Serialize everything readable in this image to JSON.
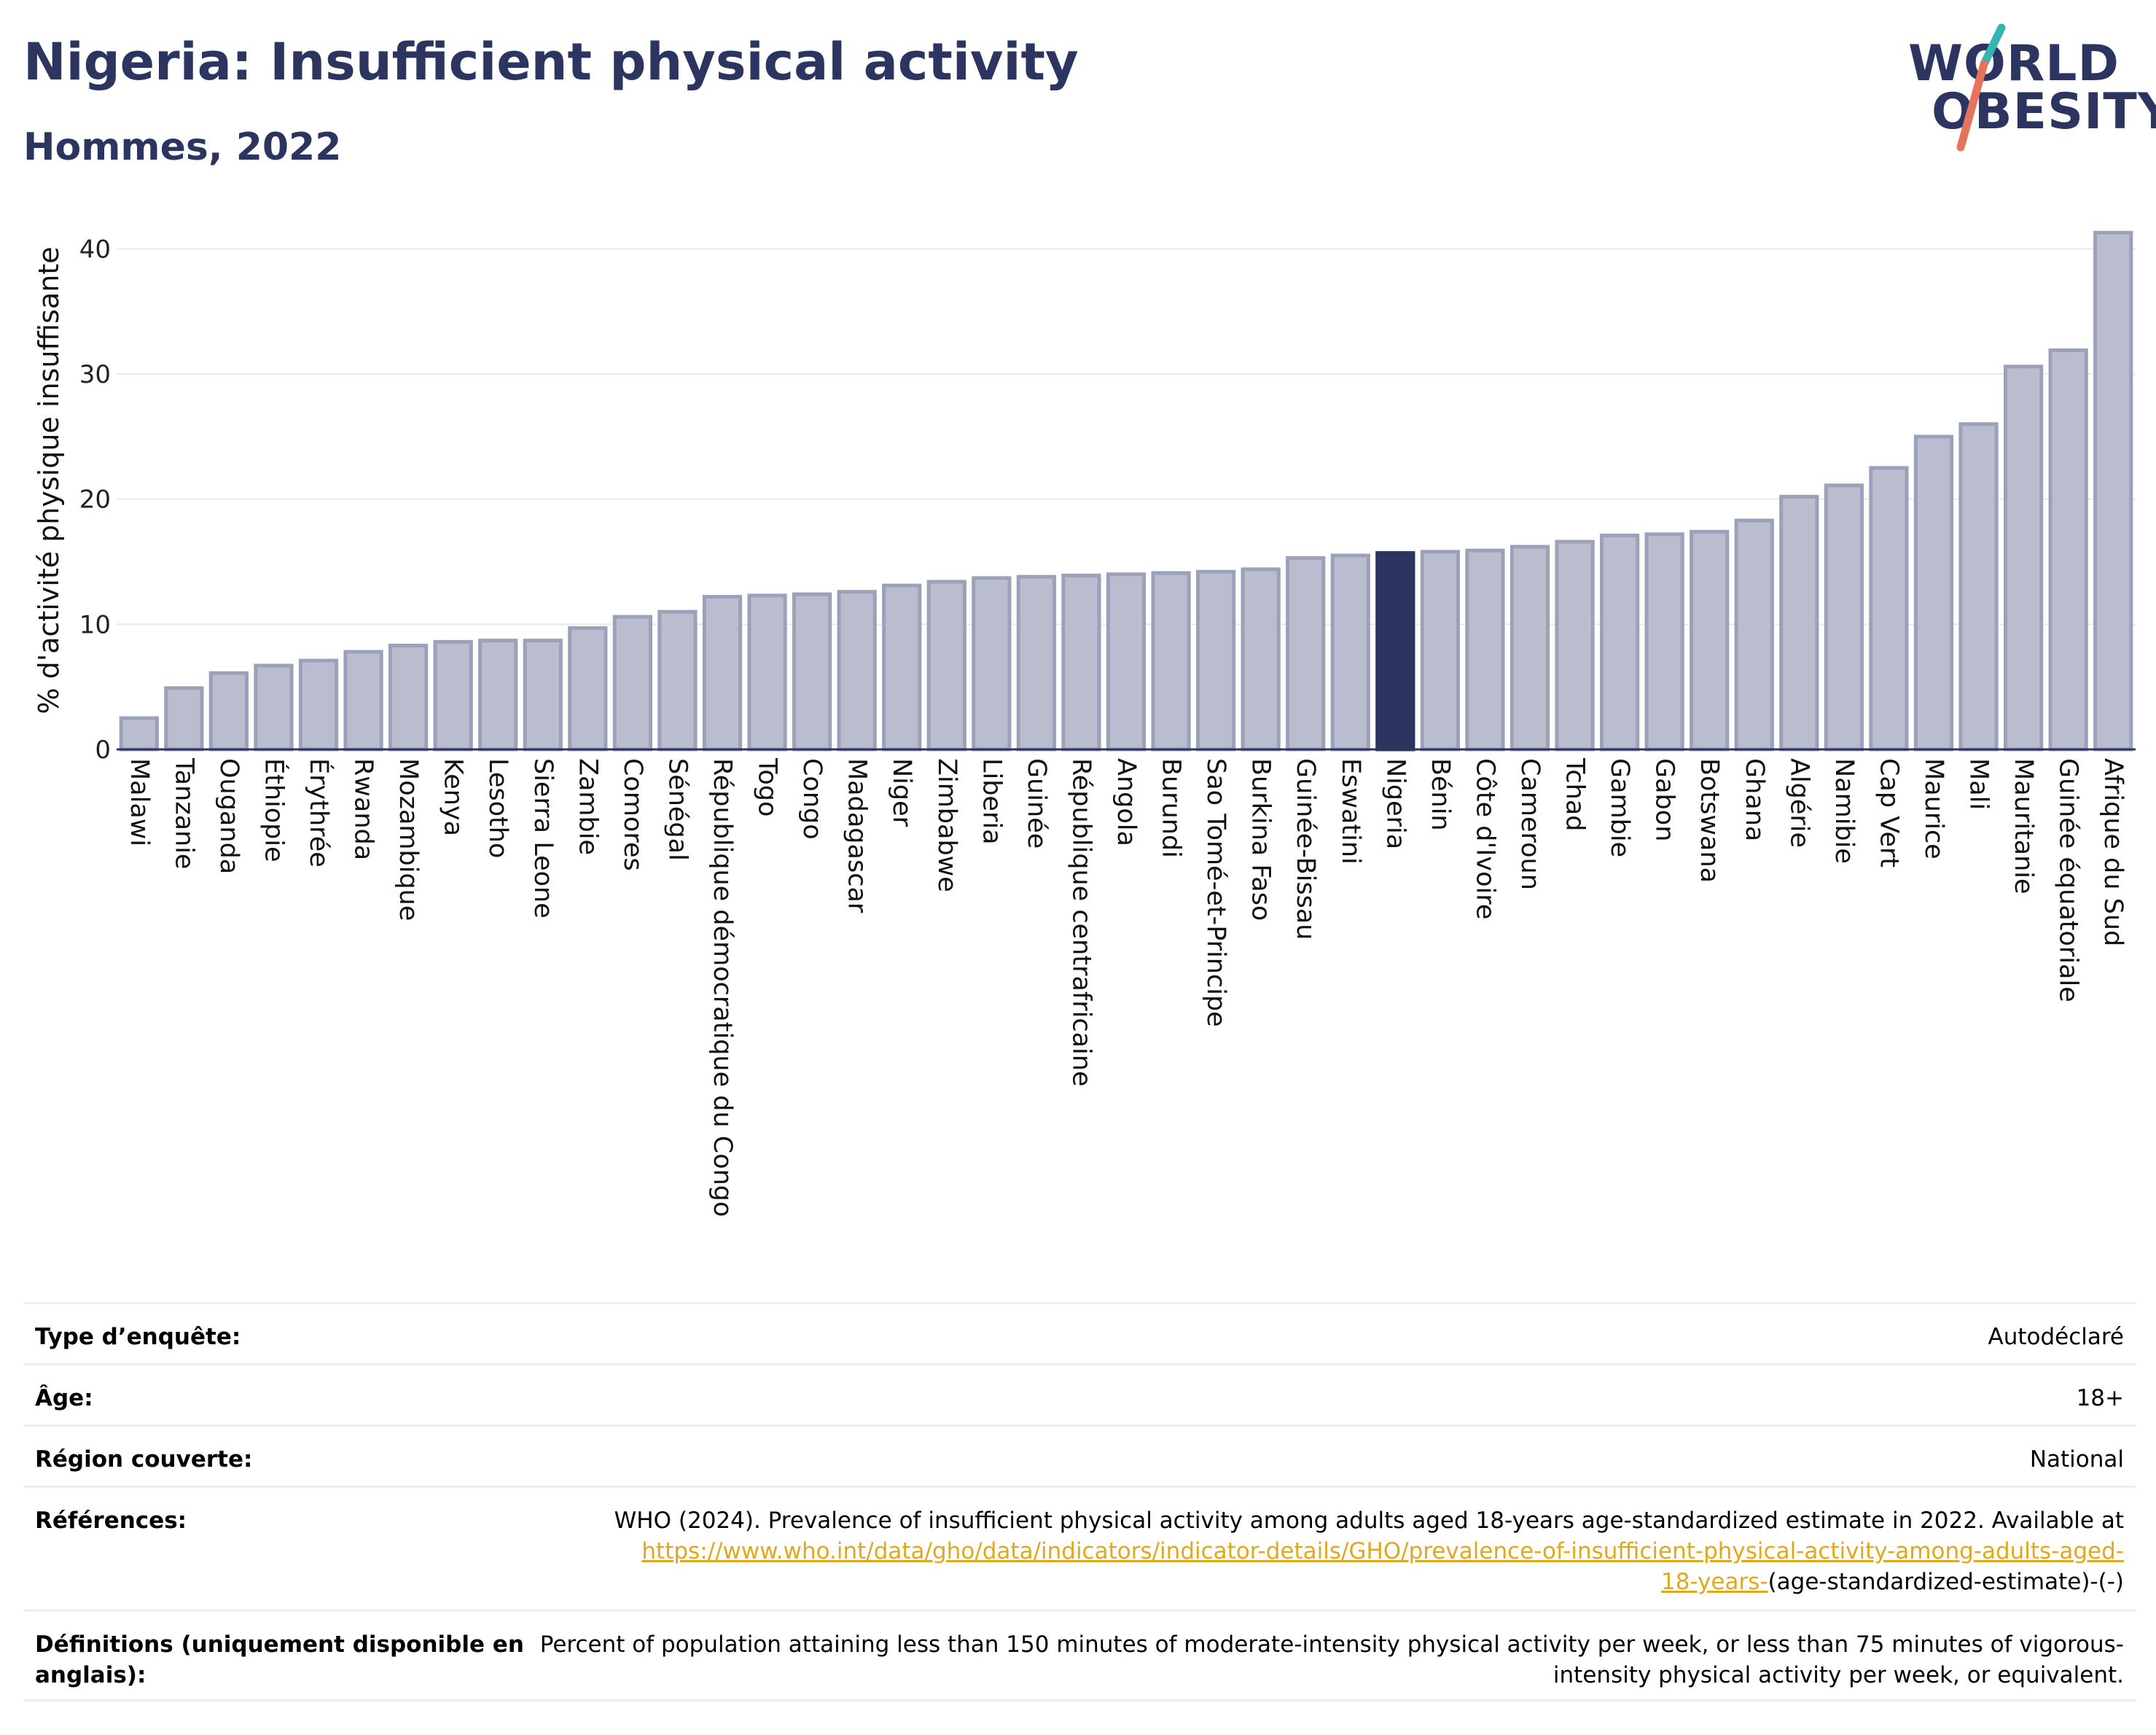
{
  "header": {
    "title": "Nigeria: Insufficient physical activity",
    "subtitle": "Hommes, 2022",
    "logo_line1": "WORLD",
    "logo_line2": "OBESITY"
  },
  "colors": {
    "bar": "#b9bdcd",
    "bar_edge": "#9ba1b9",
    "highlight": "#2c3560",
    "title": "#2c3560",
    "link": "#e0a81c",
    "logo_teal": "#33b5b0",
    "logo_coral": "#e8735d"
  },
  "chart_data": {
    "type": "bar",
    "ylabel": "% d'activité physique insuffisante",
    "ylim": [
      0,
      43
    ],
    "yticks": [
      0,
      10,
      20,
      30,
      40
    ],
    "grid": true,
    "highlight": "Nigeria",
    "categories": [
      "Malawi",
      "Tanzanie",
      "Ouganda",
      "Éthiopie",
      "Érythrée",
      "Rwanda",
      "Mozambique",
      "Kenya",
      "Lesotho",
      "Sierra Leone",
      "Zambie",
      "Comores",
      "Sénégal",
      "République démocratique du Congo",
      "Togo",
      "Congo",
      "Madagascar",
      "Niger",
      "Zimbabwe",
      "Liberia",
      "Guinée",
      "République centrafricaine",
      "Angola",
      "Burundi",
      "Sao Tomé-et-Principe",
      "Burkina Faso",
      "Guinée-Bissau",
      "Eswatini",
      "Nigeria",
      "Bénin",
      "Côte d'Ivoire",
      "Cameroun",
      "Tchad",
      "Gambie",
      "Gabon",
      "Botswana",
      "Ghana",
      "Algérie",
      "Namibie",
      "Cap Vert",
      "Maurice",
      "Mali",
      "Mauritanie",
      "Guinée équatoriale",
      "Afrique du Sud"
    ],
    "values": [
      2.5,
      4.9,
      6.1,
      6.7,
      7.1,
      7.8,
      8.3,
      8.6,
      8.7,
      8.7,
      9.7,
      10.6,
      11.0,
      12.2,
      12.3,
      12.4,
      12.6,
      13.1,
      13.4,
      13.7,
      13.8,
      13.9,
      14.0,
      14.1,
      14.2,
      14.4,
      15.3,
      15.5,
      15.7,
      15.8,
      15.9,
      16.2,
      16.6,
      17.1,
      17.2,
      17.4,
      18.3,
      20.2,
      21.1,
      22.5,
      25.0,
      26.0,
      30.6,
      31.9,
      41.3
    ]
  },
  "metadata": {
    "rows": [
      {
        "label": "Type d’enquête:",
        "value": "Autodéclaré"
      },
      {
        "label": "Âge:",
        "value": "18+"
      },
      {
        "label": "Région couverte:",
        "value": "National"
      }
    ],
    "references_label": "Références:",
    "references_text": "WHO (2024). Prevalence of insufficient physical activity among adults aged 18-years age-standardized estimate in 2022. Available at",
    "references_link_1": "https://www.who.int/data/gho/data/indicators/indicator-details/GHO/prevalence-of-insufficient-physical-activity-among-adults-aged-",
    "references_link_2": "18-years-",
    "references_suffix": "(age-standardized-estimate)-(-)",
    "definitions_label": "Définitions (uniquement disponible en anglais):",
    "definitions_text": "Percent of population attaining less than 150 minutes of moderate-intensity physical activity per week, or less than 75 minutes of vigorous-intensity physical activity per week, or equivalent."
  }
}
